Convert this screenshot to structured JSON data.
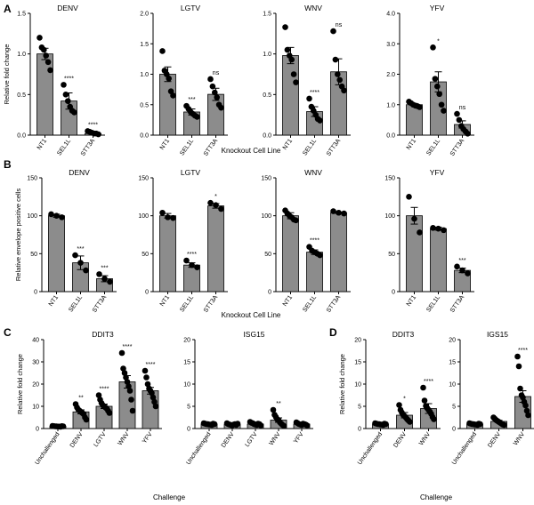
{
  "panel_labels": [
    "A",
    "B",
    "C",
    "D"
  ],
  "shared_labels": {
    "a_xlabel": "Knockout Cell Line",
    "b_xlabel": "Knockout Cell Line",
    "c_xlabel": "Challenge",
    "d_xlabel": "Challenge"
  },
  "colors": {
    "bar": "#8c8c8c",
    "points": "#000000",
    "axis": "#000000"
  },
  "chart_data": [
    {
      "id": "A-DENV",
      "type": "bar",
      "title": "DENV",
      "ylabel": "Relative fold change",
      "ylim": [
        0,
        1.5
      ],
      "yticks": [
        0.0,
        0.5,
        1.0,
        1.5
      ],
      "ytick_labels": [
        "0.0",
        "0.5",
        "1.0",
        "1.5"
      ],
      "categories": [
        "NT1",
        "SEL1L",
        "STT3A"
      ],
      "values": [
        1.0,
        0.42,
        0.02
      ],
      "errors": [
        0.07,
        0.1,
        0.01
      ],
      "points": [
        [
          1.2,
          1.08,
          1.05,
          0.98,
          0.9,
          0.8
        ],
        [
          0.62,
          0.5,
          0.42,
          0.35,
          0.3,
          0.28
        ],
        [
          0.05,
          0.04,
          0.03,
          0.02,
          0.02,
          0.01
        ]
      ],
      "annotations": [
        "",
        "****",
        "****"
      ]
    },
    {
      "id": "A-LGTV",
      "type": "bar",
      "title": "LGTV",
      "ylabel": "",
      "ylim": [
        0,
        2.0
      ],
      "yticks": [
        0.0,
        0.5,
        1.0,
        1.5,
        2.0
      ],
      "ytick_labels": [
        "0.0",
        "0.5",
        "1.0",
        "1.5",
        "2.0"
      ],
      "categories": [
        "NT1",
        "SEL1L",
        "STT3A"
      ],
      "values": [
        1.0,
        0.38,
        0.67
      ],
      "errors": [
        0.12,
        0.05,
        0.1
      ],
      "points": [
        [
          1.38,
          1.06,
          1.0,
          0.93,
          0.72,
          0.65
        ],
        [
          0.48,
          0.43,
          0.38,
          0.35,
          0.32,
          0.3
        ],
        [
          0.92,
          0.8,
          0.7,
          0.62,
          0.5,
          0.45
        ]
      ],
      "annotations": [
        "",
        "***",
        "ns"
      ]
    },
    {
      "id": "A-WNV",
      "type": "bar",
      "title": "WNV",
      "ylabel": "",
      "ylim": [
        0,
        1.5
      ],
      "yticks": [
        0.0,
        0.5,
        1.0,
        1.5
      ],
      "ytick_labels": [
        "0.0",
        "0.5",
        "1.0",
        "1.5"
      ],
      "categories": [
        "NT1",
        "SEL1L",
        "STT3A"
      ],
      "values": [
        0.98,
        0.29,
        0.78
      ],
      "errors": [
        0.1,
        0.06,
        0.16
      ],
      "points": [
        [
          1.33,
          1.05,
          0.98,
          0.93,
          0.75,
          0.65
        ],
        [
          0.45,
          0.35,
          0.3,
          0.25,
          0.2,
          0.18
        ],
        [
          1.28,
          0.93,
          0.75,
          0.68,
          0.6,
          0.55
        ]
      ],
      "annotations": [
        "",
        "****",
        "ns"
      ]
    },
    {
      "id": "A-YFV",
      "type": "bar",
      "title": "YFV",
      "ylabel": "",
      "ylim": [
        0,
        4.0
      ],
      "yticks": [
        0.0,
        1.0,
        2.0,
        3.0,
        4.0
      ],
      "ytick_labels": [
        "0.0",
        "1.0",
        "2.0",
        "3.0",
        "4.0"
      ],
      "categories": [
        "NT1",
        "SEL1L",
        "STT3A"
      ],
      "values": [
        1.0,
        1.75,
        0.35
      ],
      "errors": [
        0.04,
        0.33,
        0.12
      ],
      "points": [
        [
          1.1,
          1.05,
          1.0,
          0.97,
          0.95,
          0.92
        ],
        [
          2.88,
          1.85,
          1.6,
          1.35,
          1.0,
          0.8
        ],
        [
          0.7,
          0.5,
          0.3,
          0.2,
          0.12,
          0.05
        ]
      ],
      "annotations": [
        "",
        "*",
        "ns"
      ]
    },
    {
      "id": "B-DENV",
      "type": "bar",
      "title": "DENV",
      "ylabel": "Relative envelope positive cells",
      "ylim": [
        0,
        150
      ],
      "yticks": [
        0,
        50,
        100,
        150
      ],
      "ytick_labels": [
        "0",
        "50",
        "100",
        "150"
      ],
      "categories": [
        "NT1",
        "SEL1L",
        "STT3A"
      ],
      "values": [
        100,
        38,
        17
      ],
      "errors": [
        2,
        9,
        4
      ],
      "points": [
        [
          102,
          100,
          98
        ],
        [
          48,
          38,
          28
        ],
        [
          23,
          17,
          13
        ]
      ],
      "annotations": [
        "",
        "***",
        "***"
      ]
    },
    {
      "id": "B-LGTV",
      "type": "bar",
      "title": "LGTV",
      "ylabel": "",
      "ylim": [
        0,
        150
      ],
      "yticks": [
        0,
        50,
        100,
        150
      ],
      "ytick_labels": [
        "0",
        "50",
        "100",
        "150"
      ],
      "categories": [
        "NT1",
        "SEL1L",
        "STT3A"
      ],
      "values": [
        100,
        35,
        113
      ],
      "errors": [
        3,
        3,
        3
      ],
      "points": [
        [
          104,
          98,
          97
        ],
        [
          41,
          35,
          32
        ],
        [
          117,
          114,
          109
        ]
      ],
      "annotations": [
        "",
        "****",
        "*"
      ]
    },
    {
      "id": "B-WNV",
      "type": "bar",
      "title": "WNV",
      "ylabel": "",
      "ylim": [
        0,
        150
      ],
      "yticks": [
        0,
        50,
        100,
        150
      ],
      "ytick_labels": [
        "0",
        "50",
        "100",
        "150"
      ],
      "categories": [
        "NT1",
        "SEL1L",
        "STT3A"
      ],
      "values": [
        100,
        52,
        104
      ],
      "errors": [
        4,
        3,
        1
      ],
      "points": [
        [
          107,
          103,
          100,
          98,
          95,
          94
        ],
        [
          59,
          54,
          52,
          50,
          48
        ],
        [
          106,
          104,
          103
        ]
      ],
      "annotations": [
        "",
        "****",
        ""
      ]
    },
    {
      "id": "B-YFV",
      "type": "bar",
      "title": "YFV",
      "ylabel": "",
      "ylim": [
        0,
        150
      ],
      "yticks": [
        0,
        50,
        100,
        150
      ],
      "ytick_labels": [
        "0",
        "50",
        "100",
        "150"
      ],
      "categories": [
        "NT1",
        "SEL1L",
        "STT3A"
      ],
      "values": [
        100,
        83,
        28
      ],
      "errors": [
        11,
        2,
        3
      ],
      "points": [
        [
          125,
          96,
          78
        ],
        [
          84,
          83,
          81
        ],
        [
          33,
          28,
          24
        ]
      ],
      "annotations": [
        "",
        "",
        "***"
      ]
    },
    {
      "id": "C-DDIT3",
      "type": "bar",
      "title": "DDIT3",
      "ylabel": "Relative fold change",
      "ylim": [
        0,
        40
      ],
      "yticks": [
        0,
        10,
        20,
        30,
        40
      ],
      "ytick_labels": [
        "0",
        "10",
        "20",
        "30",
        "40"
      ],
      "categories": [
        "Unchallenged",
        "DENV",
        "LGTV",
        "WNV",
        "YFV"
      ],
      "values": [
        1.0,
        7.5,
        10.0,
        21.0,
        17.0
      ],
      "errors": [
        0.1,
        0.9,
        1.0,
        2.8,
        1.5
      ],
      "points": [
        [
          1.2,
          1.1,
          1.0,
          1.0,
          0.9,
          0.9,
          0.8,
          1.1,
          1.0
        ],
        [
          11,
          9.5,
          8.5,
          8,
          7.5,
          7,
          6.5,
          5,
          4
        ],
        [
          15,
          13,
          11.5,
          10.5,
          10,
          9.5,
          9,
          8,
          7
        ],
        [
          34,
          27,
          25,
          23,
          21,
          19,
          17,
          13,
          8
        ],
        [
          26,
          23,
          20,
          18,
          17,
          16,
          14,
          12,
          10
        ]
      ],
      "annotations": [
        "",
        "**",
        "****",
        "****",
        "****"
      ]
    },
    {
      "id": "C-ISG15",
      "type": "bar",
      "title": "ISG15",
      "ylabel": "",
      "ylim": [
        0,
        20
      ],
      "yticks": [
        0,
        5,
        10,
        15,
        20
      ],
      "ytick_labels": [
        "0",
        "5",
        "10",
        "15",
        "20"
      ],
      "categories": [
        "Unchallenged",
        "DENV",
        "LGTV",
        "WNV",
        "YFV"
      ],
      "values": [
        1.0,
        0.9,
        1.0,
        1.9,
        1.0
      ],
      "errors": [
        0.05,
        0.1,
        0.1,
        0.5,
        0.1
      ],
      "points": [
        [
          1.2,
          1.1,
          1.0,
          1.0,
          0.9,
          0.9,
          0.8,
          1.1,
          1.0
        ],
        [
          1.2,
          1.0,
          0.9,
          0.8,
          0.7,
          0.9,
          1.0,
          0.8,
          1.1
        ],
        [
          1.5,
          1.3,
          1.2,
          1.0,
          0.9,
          0.8,
          1.1,
          1.0,
          0.7
        ],
        [
          4.2,
          3.1,
          2.6,
          2.1,
          1.9,
          1.4,
          1.1,
          0.8,
          0.6
        ],
        [
          1.4,
          1.2,
          1.0,
          0.9,
          0.8,
          1.1,
          1.0,
          0.9,
          0.7
        ]
      ],
      "annotations": [
        "",
        "",
        "",
        "**",
        ""
      ]
    },
    {
      "id": "D-DDIT3",
      "type": "bar",
      "title": "DDIT3",
      "ylabel": "Relative fold change",
      "ylim": [
        0,
        20
      ],
      "yticks": [
        0,
        5,
        10,
        15,
        20
      ],
      "ytick_labels": [
        "0",
        "5",
        "10",
        "15",
        "20"
      ],
      "categories": [
        "Unchallenged",
        "DENV",
        "WNV"
      ],
      "values": [
        1.0,
        3.0,
        4.5
      ],
      "errors": [
        0.05,
        0.6,
        1.1
      ],
      "points": [
        [
          1.2,
          1.1,
          1.0,
          1.0,
          0.9,
          0.9,
          0.8,
          1.1,
          1.0
        ],
        [
          5.3,
          4.2,
          3.6,
          3.1,
          2.8,
          2.5,
          2.1,
          1.8,
          1.5
        ],
        [
          9.2,
          6.3,
          5.1,
          4.6,
          4.2,
          3.8,
          3.3,
          2.6,
          2.1
        ]
      ],
      "annotations": [
        "",
        "*",
        "****"
      ]
    },
    {
      "id": "D-IGS15",
      "type": "bar",
      "title": "IGS15",
      "ylabel": "",
      "ylim": [
        0,
        20
      ],
      "yticks": [
        0,
        5,
        10,
        15,
        20
      ],
      "ytick_labels": [
        "0",
        "5",
        "10",
        "15",
        "20"
      ],
      "categories": [
        "Unchallenged",
        "DENV",
        "WNV"
      ],
      "values": [
        1.0,
        1.6,
        7.2
      ],
      "errors": [
        0.05,
        0.25,
        1.3
      ],
      "points": [
        [
          1.2,
          1.1,
          1.0,
          1.0,
          0.9,
          0.9,
          0.8,
          1.1,
          1.0
        ],
        [
          2.5,
          2.2,
          1.9,
          1.7,
          1.5,
          1.3,
          1.1,
          0.9,
          0.8
        ],
        [
          16.2,
          14.0,
          9.0,
          7.5,
          7.0,
          6.0,
          5.2,
          4.0,
          3.0
        ]
      ],
      "annotations": [
        "",
        "",
        "****"
      ]
    }
  ]
}
